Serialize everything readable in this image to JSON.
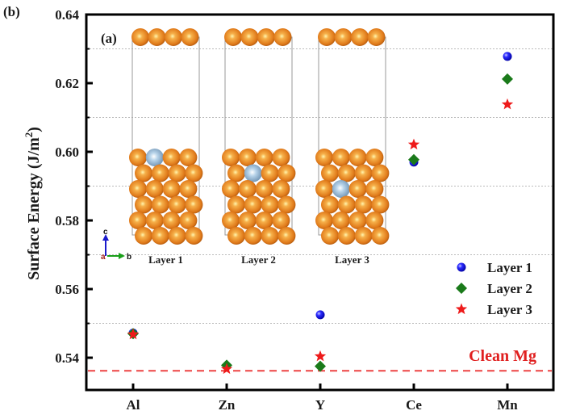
{
  "chart_data": {
    "type": "scatter",
    "panel_label": "(b)",
    "inset_panel_label": "(a)",
    "title": "",
    "xlabel": "",
    "ylabel": "Surface Energy (J/m",
    "ylabel_superscript": "2",
    "ylabel_suffix": ")",
    "categories": [
      "Al",
      "Zn",
      "Y",
      "Ce",
      "Mn"
    ],
    "ylim": [
      0.5306,
      0.64
    ],
    "yticks": [
      0.54,
      0.56,
      0.58,
      0.6,
      0.62,
      0.64
    ],
    "ytick_labels": [
      "0.54",
      "0.56",
      "0.58",
      "0.60",
      "0.62",
      "0.64"
    ],
    "grid": "horizontal dotted minor lines at 0.55, 0.57, 0.59, 0.61, 0.63",
    "minor_grid": [
      0.55,
      0.57,
      0.59,
      0.61,
      0.63
    ],
    "legend_position": "lower-right",
    "series": [
      {
        "name": "Layer 1",
        "marker": "sphere",
        "color": "#1a1aee",
        "values": [
          0.5472,
          null,
          0.5525,
          0.597,
          0.6278
        ]
      },
      {
        "name": "Layer 2",
        "marker": "diamond",
        "color": "#1a7a1a",
        "values": [
          0.547,
          0.5378,
          0.5375,
          0.5977,
          0.6212
        ]
      },
      {
        "name": "Layer 3",
        "marker": "star",
        "color": "#ee1a1a",
        "values": [
          0.5468,
          0.5367,
          0.5404,
          0.6021,
          0.6138
        ]
      }
    ],
    "reference_line": {
      "label": "Clean Mg",
      "value": 0.5362,
      "color": "#ee4444",
      "style": "dashed"
    },
    "inset": {
      "structures": [
        {
          "label": "Layer 1",
          "dopant_row": 1,
          "dopant_col": 2
        },
        {
          "label": "Layer 2",
          "dopant_row": 2,
          "dopant_col": 2
        },
        {
          "label": "Layer 3",
          "dopant_row": 3,
          "dopant_col": 2
        }
      ],
      "host_atom_color": "#e07a1a",
      "dopant_atom_color": "#8fb5d6",
      "axes_glyph": {
        "c": "c",
        "a": "a",
        "b": "b"
      }
    }
  }
}
